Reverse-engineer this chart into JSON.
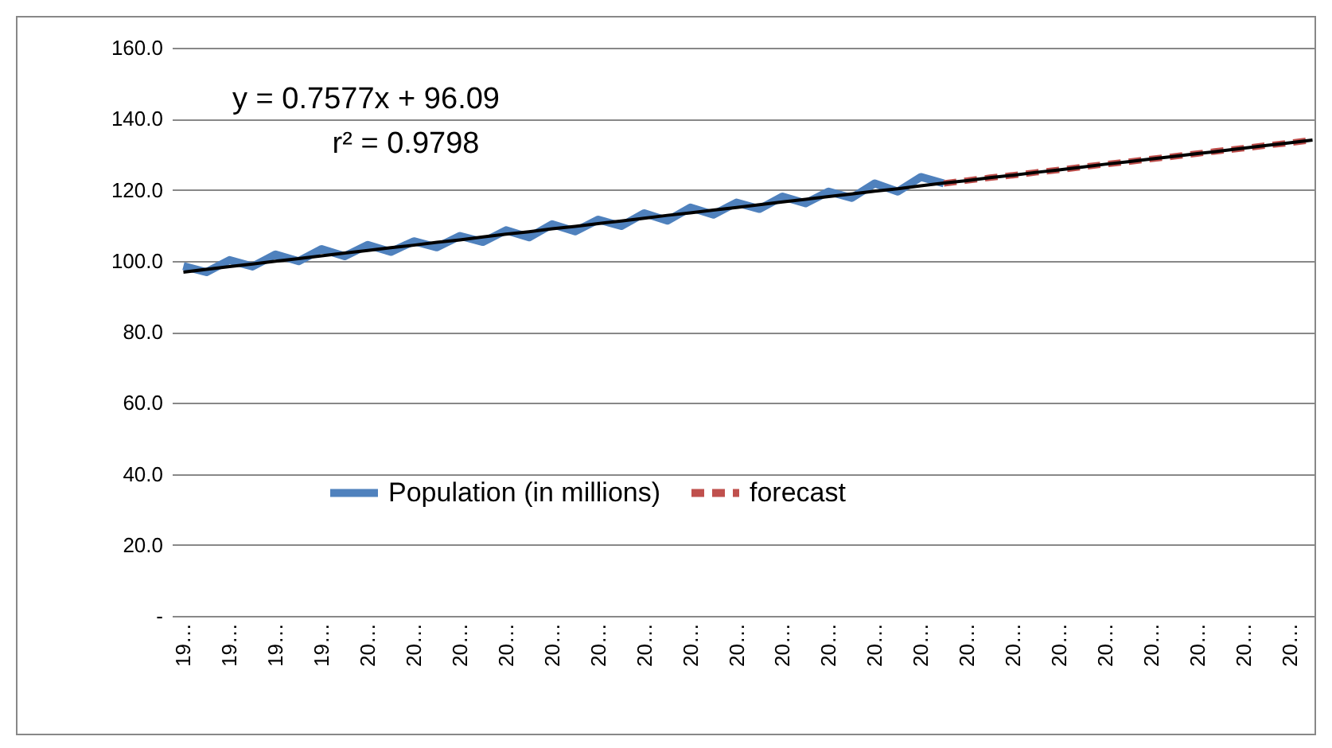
{
  "chart_data": {
    "type": "line",
    "categories": [
      "19…",
      null,
      "19…",
      null,
      "19…",
      null,
      "19…",
      null,
      "20…",
      null,
      "20…",
      null,
      "20…",
      null,
      "20…",
      null,
      "20…",
      null,
      "20…",
      null,
      "20…",
      null,
      "20…",
      null,
      "20…",
      null,
      "20…",
      null,
      "20…",
      null,
      "20…",
      null,
      "20…",
      null,
      "20…",
      null,
      "20…",
      null,
      "20…",
      null,
      "20…",
      null,
      "20…",
      null,
      "20…",
      null,
      "20…",
      null,
      "20…",
      null
    ],
    "series": [
      {
        "name": "Population (in millions)",
        "color": "#4f81bd",
        "line_style": "solid",
        "values": [
          98.5,
          96.8,
          100.2,
          98.4,
          101.8,
          99.9,
          103.3,
          101.3,
          104.5,
          102.5,
          105.5,
          103.8,
          107.0,
          105.3,
          108.6,
          106.6,
          110.3,
          108.3,
          111.6,
          109.8,
          113.4,
          111.3,
          115.0,
          113.0,
          116.4,
          114.6,
          118.1,
          116.2,
          119.5,
          117.7,
          121.8,
          119.5,
          123.6,
          121.8,
          null,
          null,
          null,
          null,
          null,
          null,
          null,
          null,
          null,
          null,
          null,
          null,
          null,
          null,
          null,
          null
        ]
      },
      {
        "name": "forecast",
        "color": "#c0504d",
        "line_style": "dashed",
        "values": [
          null,
          null,
          null,
          null,
          null,
          null,
          null,
          null,
          null,
          null,
          null,
          null,
          null,
          null,
          null,
          null,
          null,
          null,
          null,
          null,
          null,
          null,
          null,
          null,
          null,
          null,
          null,
          null,
          null,
          null,
          null,
          null,
          null,
          121.8,
          122.6,
          123.4,
          124.1,
          124.9,
          125.6,
          126.4,
          127.2,
          127.9,
          128.7,
          129.4,
          130.2,
          131.0,
          131.7,
          132.5,
          133.2,
          134.0
        ]
      },
      {
        "type": "line",
        "color": "#000000",
        "line_style": "solid",
        "values": [
          96.8,
          97.6,
          98.4,
          99.1,
          99.9,
          100.6,
          101.4,
          102.2,
          102.9,
          103.7,
          104.4,
          105.2,
          105.9,
          106.7,
          107.5,
          108.2,
          109.0,
          109.7,
          110.5,
          111.2,
          112.0,
          112.8,
          113.5,
          114.3,
          115.0,
          115.8,
          116.6,
          117.3,
          118.1,
          118.8,
          119.6,
          120.3,
          121.1,
          121.9,
          122.6,
          123.4,
          124.1,
          124.9,
          125.6,
          126.4,
          127.2,
          127.9,
          128.7,
          129.4,
          130.2,
          130.9,
          131.7,
          132.5,
          133.2,
          134.0
        ]
      }
    ],
    "ylim": [
      0,
      160
    ],
    "yticks": [
      {
        "value": 0,
        "label": "-"
      },
      {
        "value": 20,
        "label": "20.0"
      },
      {
        "value": 40,
        "label": "40.0"
      },
      {
        "value": 60,
        "label": "60.0"
      },
      {
        "value": 80,
        "label": "80.0"
      },
      {
        "value": 100,
        "label": "100.0"
      },
      {
        "value": 120,
        "label": "120.0"
      },
      {
        "value": 140,
        "label": "140.0"
      },
      {
        "value": 160,
        "label": "160.0"
      }
    ],
    "grid": "y",
    "legend": "bottom",
    "annotations": [
      "y = 0.7577x + 96.09",
      "r² = 0.9798"
    ]
  }
}
